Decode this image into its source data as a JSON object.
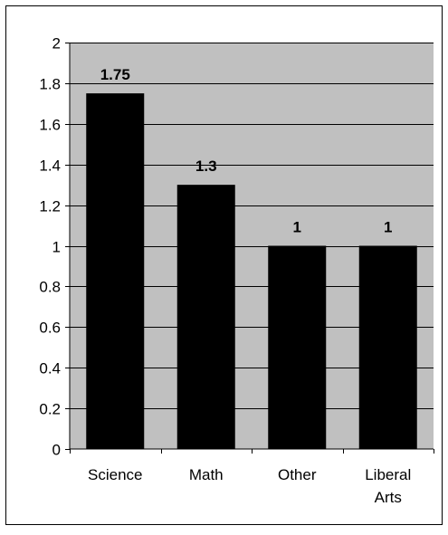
{
  "chart_data": {
    "type": "bar",
    "title": "",
    "xlabel": "",
    "ylabel": "",
    "categories": [
      "Science",
      "Math",
      "Other",
      "Liberal Arts"
    ],
    "category_lines": [
      [
        "Science"
      ],
      [
        "Math"
      ],
      [
        "Other"
      ],
      [
        "Liberal",
        "Arts"
      ]
    ],
    "values": [
      1.75,
      1.3,
      1,
      1
    ],
    "data_labels": [
      "1.75",
      "1.3",
      "1",
      "1"
    ],
    "ylim": [
      0,
      2
    ],
    "y_ticks": [
      "0",
      "0.2",
      "0.4",
      "0.6",
      "0.8",
      "1",
      "1.2",
      "1.4",
      "1.6",
      "1.8",
      "2"
    ],
    "grid": true,
    "legend": "none",
    "colors": {
      "plot_background": "#c0c0c0",
      "bar_fill": "#000000",
      "gridline": "#000000",
      "outer_border": "#000000",
      "page_background": "#ffffff"
    }
  }
}
